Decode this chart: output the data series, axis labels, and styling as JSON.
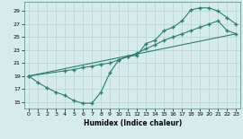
{
  "line1_x": [
    0,
    1,
    2,
    3,
    4,
    5,
    6,
    7,
    8,
    9,
    10,
    11,
    12,
    13,
    14,
    15,
    16,
    17,
    18,
    19,
    20,
    21,
    22,
    23
  ],
  "line1_y": [
    19.0,
    18.0,
    17.2,
    16.5,
    16.0,
    15.2,
    14.8,
    14.8,
    16.5,
    19.5,
    21.5,
    22.0,
    22.2,
    24.0,
    24.5,
    26.0,
    26.5,
    27.5,
    29.2,
    29.5,
    29.5,
    29.0,
    28.0,
    27.0
  ],
  "line2_x": [
    0,
    4,
    5,
    6,
    7,
    8,
    9,
    10,
    11,
    12,
    13,
    14,
    15,
    16,
    17,
    18,
    19,
    20,
    21,
    22,
    23
  ],
  "line2_y": [
    19.0,
    19.8,
    20.0,
    20.3,
    20.5,
    20.8,
    21.0,
    21.5,
    22.0,
    22.5,
    23.2,
    23.8,
    24.5,
    25.0,
    25.5,
    26.0,
    26.5,
    27.0,
    27.5,
    26.0,
    25.5
  ],
  "line3_x": [
    0,
    23
  ],
  "line3_y": [
    19.0,
    25.5
  ],
  "color": "#2e7d6e",
  "bg_color": "#d6ecec",
  "grid_color": "#b8d8d8",
  "xlabel": "Humidex (Indice chaleur)",
  "xlim": [
    -0.5,
    23.5
  ],
  "ylim": [
    14.0,
    30.5
  ],
  "xticks": [
    0,
    1,
    2,
    3,
    4,
    5,
    6,
    7,
    8,
    9,
    10,
    11,
    12,
    13,
    14,
    15,
    16,
    17,
    18,
    19,
    20,
    21,
    22,
    23
  ],
  "yticks": [
    15,
    17,
    19,
    21,
    23,
    25,
    27,
    29
  ]
}
